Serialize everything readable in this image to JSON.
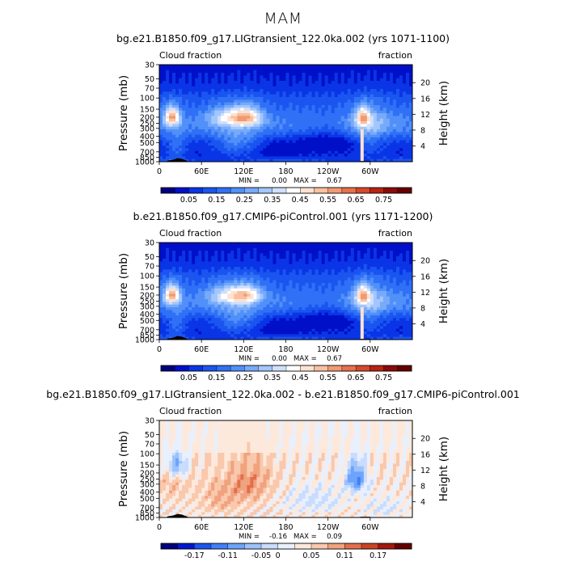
{
  "figure": {
    "title": "MAM"
  },
  "chart_data": [
    {
      "type": "heatmap",
      "title": "bg.e21.B1850.f09_g17.LIGtransient_122.0ka.002 (yrs 1071-1100)",
      "left_label": "Cloud fraction",
      "right_label": "fraction",
      "xlabel": "",
      "ylabel": "Pressure (mb)",
      "y2label": "Height (km)",
      "xticks": [
        "0",
        "60E",
        "120E",
        "180",
        "120W",
        "60W"
      ],
      "xlim": [
        0,
        360
      ],
      "yticks": [
        "30",
        "50",
        "70",
        "100",
        "150",
        "200",
        "250",
        "300",
        "400",
        "500",
        "700",
        "850",
        "1000"
      ],
      "ylim": [
        1000,
        30
      ],
      "y2ticks": [
        "20",
        "16",
        "12",
        "8",
        "4"
      ],
      "min_label": "MIN =",
      "min": "0.00",
      "max_label": "MAX =",
      "max": "0.67",
      "colorbar_ticks": [
        "0.05",
        "0.15",
        "0.25",
        "0.35",
        "0.45",
        "0.55",
        "0.65",
        "0.75"
      ],
      "levels": [
        0.0,
        0.05,
        0.1,
        0.15,
        0.2,
        0.25,
        0.3,
        0.35,
        0.4,
        0.45,
        0.5,
        0.55,
        0.6,
        0.65,
        0.7,
        0.75,
        0.8
      ],
      "colors": [
        "#00007f",
        "#0010c8",
        "#0a35e6",
        "#1a55f0",
        "#3070f6",
        "#5090f8",
        "#78aafb",
        "#a3c6fc",
        "#cfe0fd",
        "#ffffff",
        "#fde2d0",
        "#f9c0a0",
        "#f19a73",
        "#e6714b",
        "#d6482a",
        "#b82312",
        "#8c0a08",
        "#660000"
      ]
    },
    {
      "type": "heatmap",
      "title": "b.e21.B1850.f09_g17.CMIP6-piControl.001 (yrs 1171-1200)",
      "left_label": "Cloud fraction",
      "right_label": "fraction",
      "xlabel": "",
      "ylabel": "Pressure (mb)",
      "y2label": "Height (km)",
      "xticks": [
        "0",
        "60E",
        "120E",
        "180",
        "120W",
        "60W"
      ],
      "xlim": [
        0,
        360
      ],
      "yticks": [
        "30",
        "50",
        "70",
        "100",
        "150",
        "200",
        "250",
        "300",
        "400",
        "500",
        "700",
        "850",
        "1000"
      ],
      "ylim": [
        1000,
        30
      ],
      "y2ticks": [
        "20",
        "16",
        "12",
        "8",
        "4"
      ],
      "min_label": "MIN =",
      "min": "0.00",
      "max_label": "MAX =",
      "max": "0.67",
      "colorbar_ticks": [
        "0.05",
        "0.15",
        "0.25",
        "0.35",
        "0.45",
        "0.55",
        "0.65",
        "0.75"
      ],
      "levels": [
        0.0,
        0.05,
        0.1,
        0.15,
        0.2,
        0.25,
        0.3,
        0.35,
        0.4,
        0.45,
        0.5,
        0.55,
        0.6,
        0.65,
        0.7,
        0.75,
        0.8
      ],
      "colors": [
        "#00007f",
        "#0010c8",
        "#0a35e6",
        "#1a55f0",
        "#3070f6",
        "#5090f8",
        "#78aafb",
        "#a3c6fc",
        "#cfe0fd",
        "#ffffff",
        "#fde2d0",
        "#f9c0a0",
        "#f19a73",
        "#e6714b",
        "#d6482a",
        "#b82312",
        "#8c0a08",
        "#660000"
      ]
    },
    {
      "type": "heatmap",
      "title": "bg.e21.B1850.f09_g17.LIGtransient_122.0ka.002 - b.e21.B1850.f09_g17.CMIP6-piControl.001",
      "left_label": "Cloud fraction",
      "right_label": "fraction",
      "xlabel": "",
      "ylabel": "Pressure (mb)",
      "y2label": "Height (km)",
      "xticks": [
        "0",
        "60E",
        "120E",
        "180",
        "120W",
        "60W"
      ],
      "xlim": [
        0,
        360
      ],
      "yticks": [
        "30",
        "50",
        "70",
        "100",
        "150",
        "200",
        "250",
        "300",
        "400",
        "500",
        "700",
        "850",
        "1000"
      ],
      "ylim": [
        1000,
        30
      ],
      "y2ticks": [
        "20",
        "16",
        "12",
        "8",
        "4"
      ],
      "min_label": "MIN =",
      "min": "-0.16",
      "max_label": "MAX =",
      "max": "0.09",
      "colorbar_ticks": [
        "-0.17",
        "-0.11",
        "-0.05",
        "0",
        "0.05",
        "0.11",
        "0.17"
      ],
      "levels": [
        -0.2,
        -0.17,
        -0.14,
        -0.11,
        -0.08,
        -0.05,
        -0.02,
        0.0,
        0.02,
        0.05,
        0.08,
        0.11,
        0.14,
        0.17,
        0.2
      ],
      "colors": [
        "#00007f",
        "#0018d0",
        "#1a55f0",
        "#3f80f7",
        "#6da3fa",
        "#9cc2fc",
        "#c9dcfd",
        "#e8f0fe",
        "#fde9dc",
        "#f9c8ad",
        "#f1a27e",
        "#e26f4b",
        "#c94425",
        "#a11a0e",
        "#660000"
      ]
    }
  ]
}
